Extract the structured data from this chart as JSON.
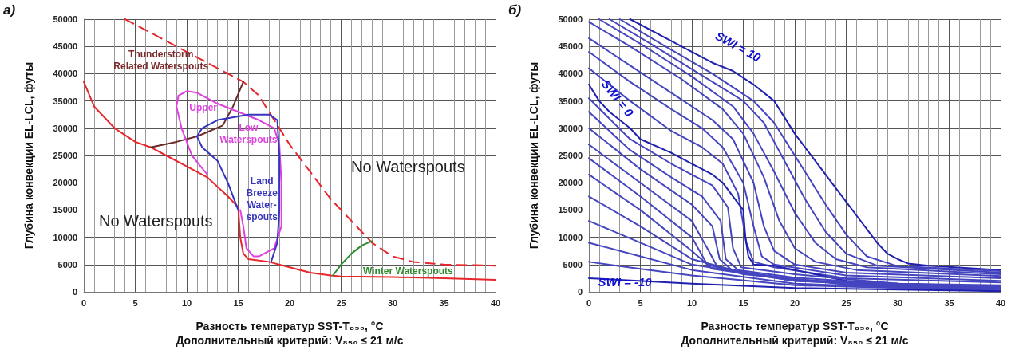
{
  "chart_data": [
    {
      "type": "line",
      "xlabel": "Разность температур SST-T₈₅₀, °C\nДополнительный критерий: V₈₅₀ ≤ 21 м/с",
      "ylabel": "Глубина конвекции EL-LCL, футы",
      "xlim": [
        0,
        40
      ],
      "xticks": [
        0,
        5,
        10,
        15,
        20,
        25,
        30,
        35,
        40
      ],
      "ylim": [
        0,
        50000
      ],
      "yticks": [
        0,
        5000,
        10000,
        15000,
        20000,
        25000,
        30000,
        35000,
        40000,
        45000,
        50000
      ],
      "grid": true,
      "marker": "none",
      "annotations": [
        "а)",
        "Thunderstorm\nRelated Waterspouts",
        "Upper",
        "Low\nWaterspouts",
        "Land\nBreeze\nWater-\nspouts",
        "No Waterspouts",
        "No Waterspouts",
        "Winter Waterspouts"
      ],
      "series": [
        {
          "color": "#e8262b",
          "x": [
            0,
            1,
            3,
            5,
            6.5,
            8,
            10,
            12,
            14,
            15,
            15.2,
            15.5,
            16,
            18,
            20,
            22,
            24,
            25,
            30,
            35,
            40
          ],
          "values": [
            38500,
            34000,
            30000,
            27500,
            26500,
            25000,
            23000,
            21000,
            17500,
            15500,
            10000,
            7000,
            6000,
            5500,
            4500,
            3500,
            3000,
            2800,
            2700,
            2500,
            2200
          ]
        },
        {
          "color": "#e8262b",
          "line_style": "dashed",
          "x": [
            4,
            6,
            8,
            10,
            12,
            14,
            15.5,
            17,
            18,
            19,
            20,
            22,
            24,
            26,
            28,
            30,
            32,
            35,
            40
          ],
          "values": [
            50000,
            48000,
            46000,
            44000,
            42000,
            40000,
            38500,
            36000,
            33000,
            30000,
            27000,
            22000,
            17000,
            13000,
            9000,
            6500,
            5500,
            5000,
            4800
          ]
        },
        {
          "color": "#6b2a2a",
          "x": [
            6.5,
            9,
            11,
            13.5,
            14.5,
            15.5
          ],
          "values": [
            26500,
            27500,
            28500,
            30500,
            34000,
            38500
          ]
        },
        {
          "color": "#e040e0",
          "x": [
            12,
            10.5,
            9.5,
            9,
            9.2,
            10,
            11,
            13,
            15,
            17,
            18.5,
            19,
            19.2,
            19.2,
            18.5,
            17,
            16.5,
            15.8,
            15.5,
            15.2
          ],
          "values": [
            21500,
            25000,
            30000,
            34000,
            36000,
            36800,
            36500,
            34500,
            33000,
            31500,
            30000,
            27000,
            20000,
            12000,
            8000,
            6500,
            6500,
            8000,
            12000,
            15000
          ]
        },
        {
          "color": "#3535c0",
          "x": [
            18.2,
            18.8,
            19,
            19,
            18.8,
            18,
            16,
            13,
            11.5,
            11,
            11.5,
            13,
            14,
            14.8,
            15
          ],
          "values": [
            5500,
            9000,
            15000,
            25000,
            31500,
            32500,
            32500,
            31500,
            30000,
            28500,
            26500,
            24000,
            20000,
            16000,
            15000
          ]
        },
        {
          "color": "#2e8b2e",
          "x": [
            24.2,
            25,
            26,
            27,
            28
          ],
          "values": [
            3000,
            5000,
            7000,
            8500,
            9300
          ]
        }
      ]
    },
    {
      "type": "line",
      "xlabel": "Разность температур SST-T₈₅₀, °C\nДополнительный критерий: V₈₅₀ ≤ 21 м/с",
      "ylabel": "Глубина конвекции EL-LCL, футы",
      "xlim": [
        0,
        40
      ],
      "xticks": [
        0,
        5,
        10,
        15,
        20,
        25,
        30,
        35,
        40
      ],
      "ylim": [
        0,
        50000
      ],
      "yticks": [
        0,
        5000,
        10000,
        15000,
        20000,
        25000,
        30000,
        35000,
        40000,
        45000,
        50000
      ],
      "grid": true,
      "marker": "none",
      "annotations": [
        "б)",
        "SWI = 10",
        "SWI = 0",
        "SWI = -10"
      ],
      "series": [
        {
          "color": "#2020b0",
          "x": [
            4,
            8,
            12,
            14,
            16,
            18,
            19,
            20,
            22,
            24,
            26,
            28,
            29,
            30,
            31,
            33,
            40
          ],
          "values": [
            50000,
            46000,
            42000,
            40500,
            38000,
            35000,
            32000,
            29000,
            24000,
            19000,
            14000,
            9000,
            7000,
            6000,
            5200,
            4800,
            4000
          ]
        },
        {
          "color": "#4545c0",
          "x": [
            3,
            7,
            12,
            16,
            18,
            20,
            23,
            25,
            27,
            30,
            40
          ],
          "values": [
            50000,
            45500,
            40000,
            35000,
            31000,
            25000,
            16000,
            10500,
            6500,
            4700,
            3800
          ]
        },
        {
          "color": "#4545c0",
          "x": [
            2,
            6,
            12,
            15,
            17,
            19,
            21,
            23,
            25,
            28,
            40
          ],
          "values": [
            50000,
            45500,
            38500,
            35000,
            31000,
            24000,
            17000,
            11000,
            7000,
            4800,
            3500
          ]
        },
        {
          "color": "#4545c0",
          "x": [
            1,
            5,
            10,
            14,
            16,
            18,
            20,
            22,
            24,
            27,
            40
          ],
          "values": [
            50000,
            45500,
            39500,
            34000,
            29000,
            22000,
            14500,
            9000,
            6000,
            4500,
            3200
          ]
        },
        {
          "color": "#4545c0",
          "x": [
            0,
            4,
            9,
            13,
            15,
            17,
            18.5,
            20,
            22,
            26,
            40
          ],
          "values": [
            49500,
            45000,
            39000,
            33500,
            29000,
            21000,
            13000,
            8000,
            5500,
            4000,
            2900
          ]
        },
        {
          "color": "#4545c0",
          "x": [
            0,
            4,
            8,
            12,
            14,
            16,
            17,
            18,
            20,
            25,
            40
          ],
          "values": [
            46500,
            41500,
            36500,
            31500,
            28000,
            20000,
            12000,
            7500,
            5000,
            3500,
            2500
          ]
        },
        {
          "color": "#4545c0",
          "x": [
            0,
            4,
            8,
            11,
            13,
            15,
            16,
            16.8,
            18,
            25,
            40
          ],
          "values": [
            44000,
            38500,
            33500,
            30000,
            26500,
            20000,
            12000,
            6500,
            5000,
            3000,
            2000
          ]
        },
        {
          "color": "#4545c0",
          "x": [
            0,
            4,
            8,
            11,
            13,
            14.5,
            15.3,
            16,
            18,
            25,
            40
          ],
          "values": [
            41000,
            35000,
            29500,
            26500,
            23500,
            18000,
            9000,
            5500,
            4500,
            2500,
            1700
          ]
        },
        {
          "color": "#2020b0",
          "x": [
            0,
            1,
            2,
            4,
            5,
            8,
            10,
            12,
            13,
            14,
            15,
            15.2,
            15.5,
            16,
            18,
            20,
            25,
            30,
            40
          ],
          "values": [
            38000,
            35000,
            33000,
            30000,
            28000,
            25500,
            23500,
            21500,
            20000,
            17500,
            15000,
            10000,
            6500,
            5000,
            4800,
            4000,
            2000,
            1500,
            1000
          ]
        },
        {
          "color": "#4545c0",
          "x": [
            0,
            4,
            8,
            12,
            13.5,
            14,
            14.8,
            20,
            30,
            40
          ],
          "values": [
            35500,
            28000,
            23500,
            19500,
            15500,
            8000,
            4500,
            3200,
            1500,
            1200
          ]
        },
        {
          "color": "#4545c0",
          "x": [
            0,
            4,
            8,
            11,
            12.8,
            13.3,
            14.5,
            20,
            30,
            40
          ],
          "values": [
            33000,
            26000,
            21000,
            17500,
            13000,
            6000,
            4000,
            2600,
            1300,
            1000
          ]
        },
        {
          "color": "#4545c0",
          "x": [
            0,
            5,
            10,
            12,
            12.7,
            14,
            20,
            40
          ],
          "values": [
            30000,
            22500,
            16000,
            12000,
            6000,
            3800,
            2200,
            800
          ]
        },
        {
          "color": "#4545c0",
          "x": [
            0,
            5,
            10,
            11.5,
            12.5,
            20,
            40
          ],
          "values": [
            27000,
            20000,
            13000,
            8000,
            4500,
            2000,
            700
          ]
        },
        {
          "color": "#4545c0",
          "x": [
            0,
            5,
            10,
            11.5,
            15,
            25,
            40
          ],
          "values": [
            24500,
            17500,
            10000,
            5000,
            3200,
            1500,
            600
          ]
        },
        {
          "color": "#4545c0",
          "x": [
            0,
            5,
            10,
            12,
            20,
            40
          ],
          "values": [
            21500,
            15000,
            7500,
            4200,
            2000,
            500
          ]
        },
        {
          "color": "#4545c0",
          "x": [
            0,
            5,
            10,
            15,
            25,
            40
          ],
          "values": [
            17500,
            12000,
            6000,
            3500,
            1300,
            400
          ]
        },
        {
          "color": "#4545c0",
          "x": [
            0,
            5,
            10,
            20,
            40
          ],
          "values": [
            13000,
            9000,
            5000,
            2000,
            300
          ]
        },
        {
          "color": "#4545c0",
          "x": [
            0,
            5,
            10,
            20,
            40
          ],
          "values": [
            9000,
            6500,
            4000,
            1500,
            200
          ]
        },
        {
          "color": "#4545c0",
          "x": [
            0,
            5,
            10,
            20,
            40
          ],
          "values": [
            5500,
            4200,
            3000,
            1200,
            200
          ]
        },
        {
          "color": "#2020b0",
          "x": [
            0,
            10,
            20,
            40
          ],
          "values": [
            2500,
            1500,
            700,
            100
          ]
        }
      ]
    }
  ]
}
